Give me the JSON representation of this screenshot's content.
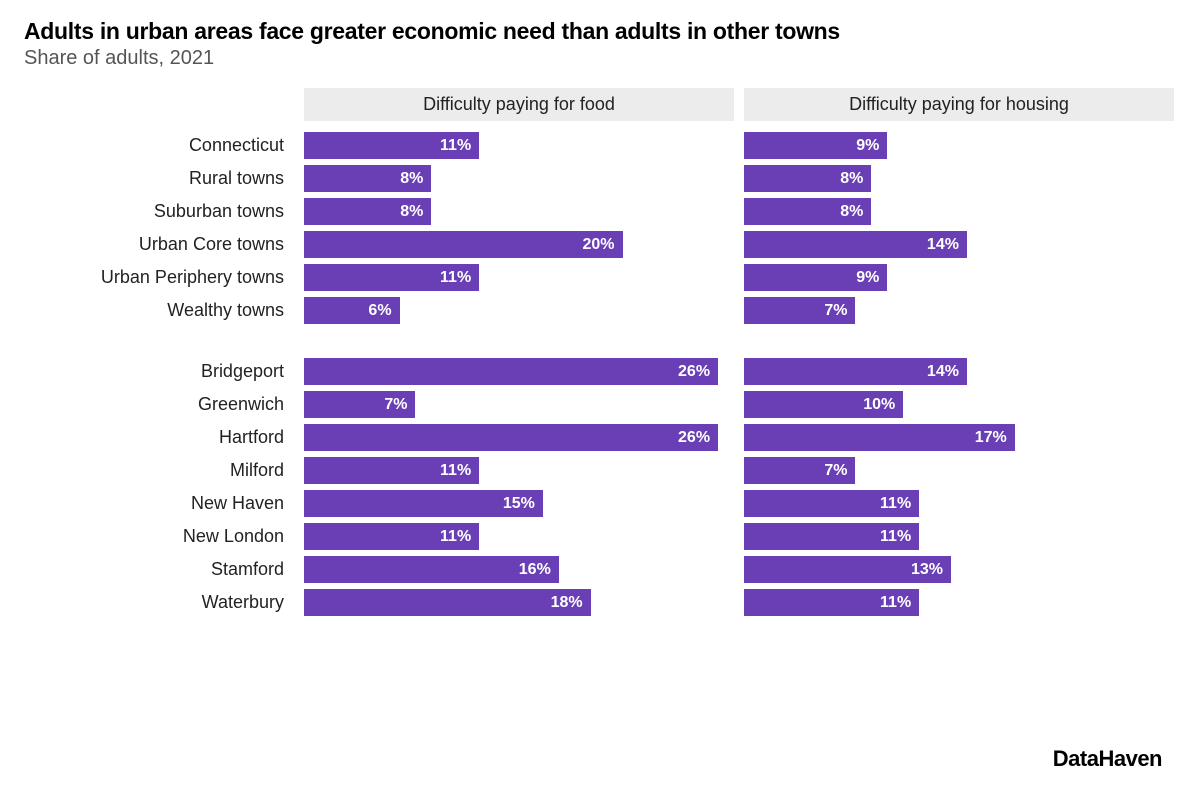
{
  "title": "Adults in urban areas face greater economic need than adults in other towns",
  "subtitle": "Share of adults, 2021",
  "source": "DataHaven",
  "chart": {
    "type": "bar",
    "bar_color": "#6a3fb5",
    "bar_label_color": "#ffffff",
    "header_bg": "#ececec",
    "text_color": "#222222",
    "max_value": 27,
    "panels": [
      {
        "label": "Difficulty paying for food"
      },
      {
        "label": "Difficulty paying for housing"
      }
    ],
    "groups": [
      {
        "rows": [
          {
            "label": "Connecticut",
            "values": [
              11,
              9
            ]
          },
          {
            "label": "Rural towns",
            "values": [
              8,
              8
            ]
          },
          {
            "label": "Suburban towns",
            "values": [
              8,
              8
            ]
          },
          {
            "label": "Urban Core towns",
            "values": [
              20,
              14
            ]
          },
          {
            "label": "Urban Periphery towns",
            "values": [
              11,
              9
            ]
          },
          {
            "label": "Wealthy towns",
            "values": [
              6,
              7
            ]
          }
        ]
      },
      {
        "rows": [
          {
            "label": "Bridgeport",
            "values": [
              26,
              14
            ]
          },
          {
            "label": "Greenwich",
            "values": [
              7,
              10
            ]
          },
          {
            "label": "Hartford",
            "values": [
              26,
              17
            ]
          },
          {
            "label": "Milford",
            "values": [
              11,
              7
            ]
          },
          {
            "label": "New Haven",
            "values": [
              15,
              11
            ]
          },
          {
            "label": "New London",
            "values": [
              11,
              11
            ]
          },
          {
            "label": "Stamford",
            "values": [
              16,
              13
            ]
          },
          {
            "label": "Waterbury",
            "values": [
              18,
              11
            ]
          }
        ]
      }
    ]
  }
}
